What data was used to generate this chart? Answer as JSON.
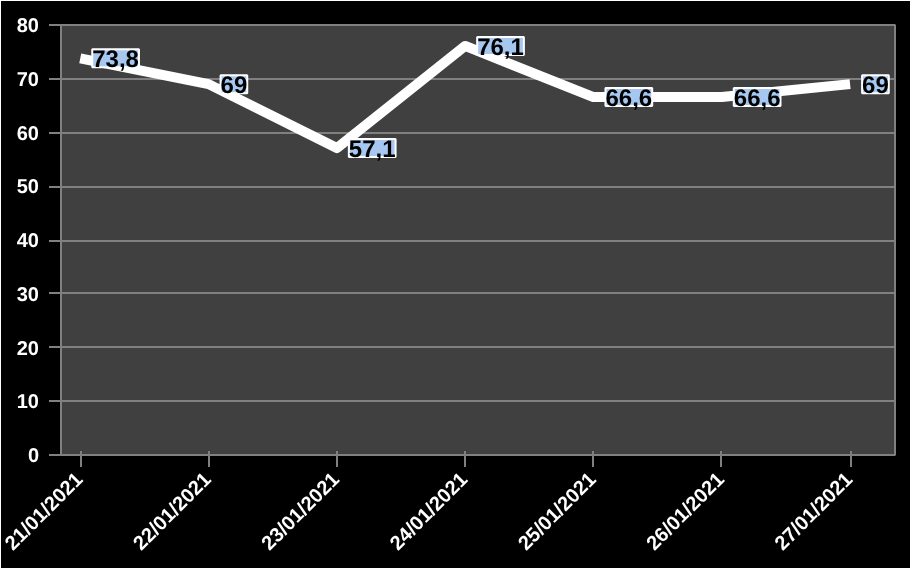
{
  "chart_data": {
    "type": "line",
    "categories": [
      "21/01/2021",
      "22/01/2021",
      "23/01/2021",
      "24/01/2021",
      "25/01/2021",
      "26/01/2021",
      "27/01/2021"
    ],
    "series": [
      {
        "color": "#ffffff",
        "values": [
          73.8,
          69,
          57.1,
          76.1,
          66.6,
          66.6,
          69
        ],
        "value_labels": [
          "73,8",
          "69",
          "57,1",
          "76,1",
          "66,6",
          "66,6",
          "69"
        ]
      }
    ],
    "ylim": [
      0,
      80
    ],
    "yticks": [
      0,
      10,
      20,
      30,
      40,
      50,
      60,
      70,
      80
    ],
    "grid": "y",
    "marker": "none",
    "line_style": "solid"
  }
}
